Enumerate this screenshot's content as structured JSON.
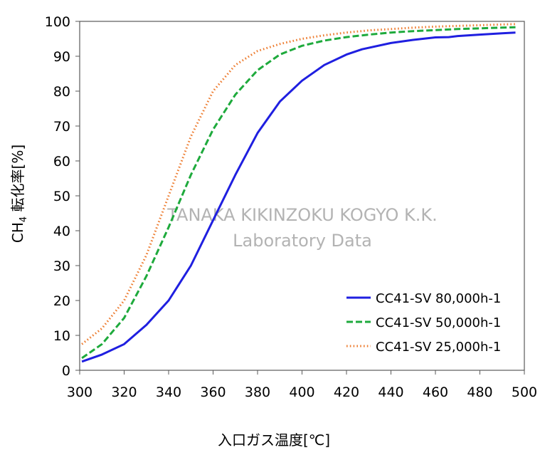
{
  "chart_data": {
    "type": "line",
    "xlabel": "入口ガス温度[℃]",
    "ylabel_main": "CH",
    "ylabel_sub": "4",
    "ylabel_rest": " 転化率[%]",
    "xlim": [
      300,
      500
    ],
    "ylim": [
      0,
      100
    ],
    "xticks": [
      300,
      320,
      340,
      360,
      380,
      400,
      420,
      440,
      460,
      480,
      500
    ],
    "yticks": [
      0,
      10,
      20,
      30,
      40,
      50,
      60,
      70,
      80,
      90,
      100
    ],
    "grid": false,
    "legend_position": "bottom-right",
    "watermark": [
      "TANAKA KIKINZOKU KOGYO K.K.",
      "Laboratory Data"
    ],
    "series": [
      {
        "name": "CC41-SV 80,000h-1",
        "color": "#1f1fe0",
        "style": "solid",
        "x": [
          301,
          310,
          320,
          330,
          340,
          350,
          360,
          370,
          380,
          390,
          400,
          410,
          420,
          427,
          440,
          450,
          460,
          466,
          470,
          480,
          490,
          496
        ],
        "y": [
          2.5,
          4.5,
          7.5,
          13,
          20,
          30,
          43,
          56,
          68,
          77,
          83,
          87.5,
          90.5,
          92,
          93.8,
          94.7,
          95.4,
          95.5,
          95.8,
          96.2,
          96.6,
          96.8
        ]
      },
      {
        "name": "CC41-SV 50,000h-1",
        "color": "#1eaa3c",
        "style": "dashed",
        "x": [
          301,
          310,
          320,
          330,
          340,
          350,
          360,
          370,
          380,
          390,
          400,
          410,
          420,
          430,
          440,
          450,
          460,
          470,
          480,
          490,
          496
        ],
        "y": [
          3.5,
          7.5,
          15,
          27,
          41,
          56,
          69,
          79,
          86,
          90.5,
          93,
          94.5,
          95.5,
          96.2,
          96.8,
          97.2,
          97.5,
          97.8,
          98,
          98.2,
          98.3
        ]
      },
      {
        "name": "CC41-SV 25,000h-1",
        "color": "#ed7d31",
        "style": "dotted",
        "x": [
          301,
          310,
          320,
          330,
          340,
          350,
          360,
          370,
          380,
          390,
          400,
          410,
          420,
          430,
          440,
          450,
          460,
          470,
          480,
          490,
          496
        ],
        "y": [
          7.5,
          12,
          20,
          33,
          50,
          67,
          80,
          87.5,
          91.5,
          93.5,
          95,
          96,
          96.8,
          97.4,
          97.8,
          98.2,
          98.5,
          98.7,
          98.9,
          99.1,
          99.2
        ]
      }
    ]
  }
}
